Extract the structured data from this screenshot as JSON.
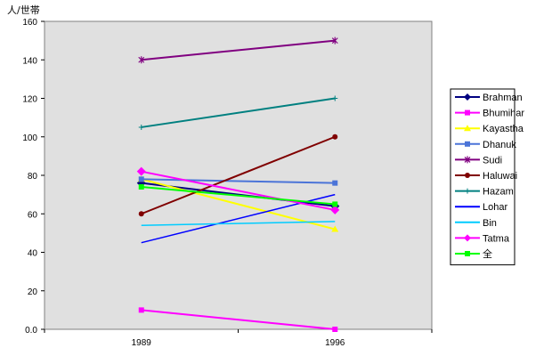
{
  "chart_data": {
    "type": "line",
    "y_unit_label": "人/世帯",
    "categories": [
      "1989",
      "1996"
    ],
    "ylim": [
      0,
      160
    ],
    "y_ticks": [
      "0.0",
      "20",
      "40",
      "60",
      "80",
      "100",
      "120",
      "140",
      "160"
    ],
    "plot_background": "#e0e0e0",
    "legend_position": "right",
    "series": [
      {
        "name": "Brahman",
        "values": [
          76,
          64
        ],
        "color": "#000080",
        "marker": "diamond"
      },
      {
        "name": "Bhumihar",
        "values": [
          10,
          0
        ],
        "color": "#ff00ff",
        "marker": "square"
      },
      {
        "name": "Kayastha",
        "values": [
          78,
          52
        ],
        "color": "#ffff00",
        "marker": "triangle"
      },
      {
        "name": "Dhanuk",
        "values": [
          78,
          76
        ],
        "color": "#4b74d8",
        "marker": "square"
      },
      {
        "name": "Sudi",
        "values": [
          140,
          150
        ],
        "color": "#800080",
        "marker": "star"
      },
      {
        "name": "Haluwai",
        "values": [
          60,
          100
        ],
        "color": "#800000",
        "marker": "circle"
      },
      {
        "name": "Hazam",
        "values": [
          105,
          120
        ],
        "color": "#008080",
        "marker": "plus"
      },
      {
        "name": "Lohar",
        "values": [
          45,
          70
        ],
        "color": "#0000ff",
        "marker": "none"
      },
      {
        "name": "Bin",
        "values": [
          54,
          56
        ],
        "color": "#00ccff",
        "marker": "none"
      },
      {
        "name": "Tatma",
        "values": [
          82,
          62
        ],
        "color": "#ff00ff",
        "marker": "diamond"
      },
      {
        "name": "全",
        "values": [
          74,
          65
        ],
        "color": "#00ff00",
        "marker": "square"
      }
    ]
  }
}
